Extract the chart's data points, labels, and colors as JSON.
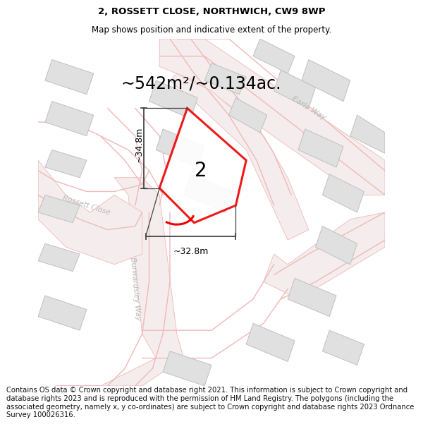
{
  "title": "2, ROSSETT CLOSE, NORTHWICH, CW9 8WP",
  "subtitle": "Map shows position and indicative extent of the property.",
  "area_label": "~542m²/~0.134ac.",
  "dim_vertical": "~34.8m",
  "dim_horizontal": "~32.8m",
  "plot_number": "2",
  "footer": "Contains OS data © Crown copyright and database right 2021. This information is subject to Crown copyright and database rights 2023 and is reproduced with the permission of HM Land Registry. The polygons (including the associated geometry, namely x, y co-ordinates) are subject to Crown copyright and database rights 2023 Ordnance Survey 100026316.",
  "title_fontsize": 9.5,
  "subtitle_fontsize": 8.5,
  "area_fontsize": 17,
  "plot_number_fontsize": 20,
  "dim_fontsize": 9,
  "footer_fontsize": 7.2,
  "map_bg": "#f7f7f7",
  "road_line_color": "#f0b8b8",
  "road_fill_color": "#f8e8e8",
  "building_color": "#e0e0e0",
  "building_edge_color": "#c0c0c0",
  "road_label_color": "#b8b8b8",
  "polygon_color": "#ee0000",
  "polygon_fill": "#ffffff",
  "dim_line_color": "#444444",
  "title_color": "#000000"
}
